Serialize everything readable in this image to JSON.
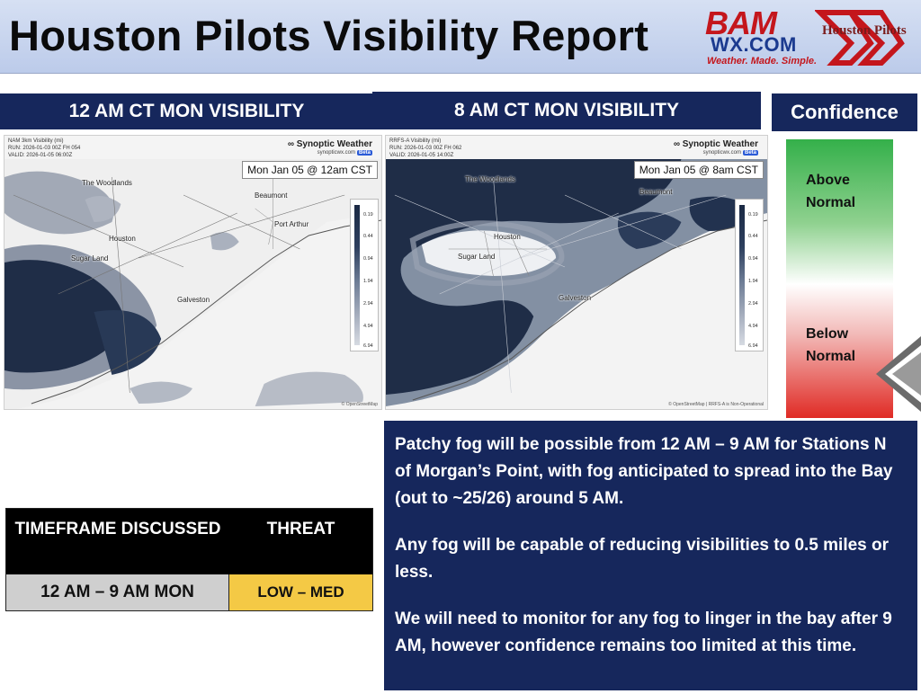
{
  "header": {
    "title": "Houston Pilots Visibility Report",
    "logos": {
      "bam_main": "BAM",
      "bam_sub": "WX.COM",
      "bam_tagline": "Weather. Made. Simple.",
      "pilots": "Houston Pilots"
    }
  },
  "panels": {
    "map1_title": "12 AM CT MON VISIBILITY",
    "map2_title": "8 AM CT MON VISIBILITY",
    "confidence_title": "Confidence"
  },
  "maps": [
    {
      "meta_line1": "NAM 3km Visibility (mi)",
      "meta_line2": "RUN: 2026-01-03 00Z FH 054",
      "meta_line3": "VALID: 2026-01-05 06:00Z",
      "brand": "∞ Synoptic Weather",
      "site": "synopticwx.com",
      "site_badge": "Beta",
      "stamp": "Mon Jan 05 @ 12am CST",
      "credit": "© OpenStreetMap",
      "cities": {
        "woodlands": "The Woodlands",
        "beaumont": "Beaumont",
        "port_arthur": "Port Arthur",
        "houston": "Houston",
        "sugar_land": "Sugar Land",
        "galveston": "Galveston"
      },
      "legend": [
        "0.19",
        "0.44",
        "0.94",
        "1.94",
        "2.94",
        "4.94",
        "6.94"
      ]
    },
    {
      "meta_line1": "RRFS-A Visibility (mi)",
      "meta_line2": "RUN: 2026-01-03 00Z FH 062",
      "meta_line3": "VALID: 2026-01-05 14:00Z",
      "brand": "∞ Synoptic Weather",
      "site": "synopticwx.com",
      "site_badge": "Beta",
      "stamp": "Mon Jan 05 @ 8am CST",
      "credit": "© OpenStreetMap | RRFS-A is Non-Operational",
      "cities": {
        "woodlands": "The Woodlands",
        "beaumont": "Beaumont",
        "houston": "Houston",
        "sugar_land": "Sugar Land",
        "galveston": "Galveston"
      },
      "legend": [
        "0.19",
        "0.44",
        "0.94",
        "1.94",
        "2.94",
        "4.94",
        "6.94"
      ]
    }
  ],
  "confidence": {
    "above": "Above Normal",
    "below": "Below Normal",
    "level": "below"
  },
  "threat_table": {
    "col1_header": "TIMEFRAME DISCUSSED",
    "col2_header": "THREAT",
    "timeframe": "12 AM – 9 AM MON",
    "threat": "LOW – MED",
    "threat_color": "#f4c945"
  },
  "discussion": [
    "Patchy fog will be possible from 12 AM – 9 AM for Stations N of Morgan’s Point, with fog anticipated to spread into the Bay (out to ~25/26) around 5 AM.",
    "Any fog will be capable of reducing visibilities to 0.5 miles or less.",
    "We will need to monitor for any fog to linger in the bay after 9 AM, however confidence remains too limited at this time."
  ],
  "colors": {
    "navy": "#16275c",
    "header_bg": "#c8d4ee",
    "fog_dark": "#1f2d47",
    "fog_light": "#9aa3b2"
  }
}
